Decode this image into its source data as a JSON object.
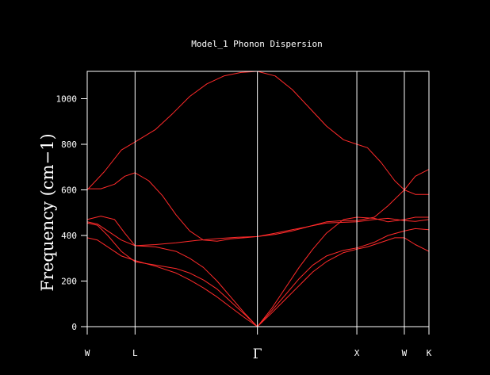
{
  "chart_data": {
    "type": "line",
    "title": "Model_1 Phonon Dispersion",
    "xlabel": "",
    "ylabel": "Frequency (cm−1)",
    "ylim": [
      0,
      1120
    ],
    "yticks": [
      0,
      200,
      400,
      600,
      800,
      1000
    ],
    "grid": false,
    "legend": "none",
    "colors": {
      "background": "#000000",
      "axes": "#ffffff",
      "series": "#ff2a2a"
    },
    "symmetry_points": [
      {
        "label": "W",
        "k": 0
      },
      {
        "label": "L",
        "k": 0.14
      },
      {
        "label": "Γ",
        "k": 0.498
      },
      {
        "label": "X",
        "k": 0.789
      },
      {
        "label": "W",
        "k": 0.928
      },
      {
        "label": "K",
        "k": 1.0
      }
    ],
    "series": [
      {
        "x": [
          0,
          0.05,
          0.1,
          0.14,
          0.2,
          0.25,
          0.3,
          0.35,
          0.4,
          0.45,
          0.498,
          0.55,
          0.6,
          0.65,
          0.7,
          0.75,
          0.789,
          0.82,
          0.86,
          0.9,
          0.928,
          0.96,
          1.0
        ],
        "y": [
          600,
          680,
          775,
          810,
          865,
          935,
          1010,
          1065,
          1100,
          1115,
          1120,
          1100,
          1040,
          960,
          880,
          820,
          800,
          785,
          720,
          640,
          600,
          580,
          580
        ]
      },
      {
        "x": [
          0,
          0.04,
          0.08,
          0.11,
          0.14,
          0.18,
          0.22,
          0.26,
          0.3,
          0.34,
          0.38,
          0.42,
          0.46,
          0.498,
          0.55,
          0.6,
          0.65,
          0.7,
          0.75,
          0.789,
          0.84,
          0.88,
          0.928,
          0.96,
          1.0
        ],
        "y": [
          605,
          605,
          625,
          660,
          675,
          640,
          575,
          490,
          420,
          380,
          375,
          385,
          390,
          395,
          405,
          420,
          440,
          460,
          465,
          465,
          480,
          530,
          600,
          660,
          690
        ]
      },
      {
        "x": [
          0,
          0.04,
          0.08,
          0.11,
          0.14,
          0.2,
          0.26,
          0.32,
          0.38,
          0.44,
          0.498,
          0.55,
          0.6,
          0.65,
          0.7,
          0.789,
          0.84,
          0.88,
          0.928,
          0.96,
          1.0
        ],
        "y": [
          470,
          485,
          470,
          410,
          355,
          360,
          368,
          378,
          386,
          392,
          395,
          410,
          425,
          440,
          455,
          460,
          470,
          475,
          465,
          462,
          470
        ]
      },
      {
        "x": [
          0,
          0.03,
          0.06,
          0.1,
          0.14,
          0.2,
          0.26,
          0.3,
          0.34,
          0.38,
          0.42,
          0.46,
          0.498,
          0.54,
          0.58,
          0.62,
          0.66,
          0.7,
          0.75,
          0.789,
          0.84,
          0.88,
          0.928,
          0.96,
          1.0
        ],
        "y": [
          460,
          450,
          420,
          380,
          355,
          350,
          330,
          300,
          260,
          200,
          130,
          60,
          0,
          80,
          170,
          260,
          340,
          410,
          470,
          480,
          475,
          460,
          470,
          480,
          480
        ]
      },
      {
        "x": [
          0,
          0.03,
          0.06,
          0.1,
          0.14,
          0.2,
          0.26,
          0.3,
          0.34,
          0.38,
          0.42,
          0.46,
          0.498,
          0.54,
          0.58,
          0.62,
          0.66,
          0.7,
          0.75,
          0.789,
          0.84,
          0.88,
          0.928,
          0.96,
          1.0
        ],
        "y": [
          455,
          445,
          400,
          330,
          285,
          270,
          255,
          235,
          205,
          165,
          110,
          55,
          0,
          70,
          140,
          210,
          270,
          310,
          335,
          345,
          370,
          400,
          420,
          430,
          425
        ]
      },
      {
        "x": [
          0,
          0.03,
          0.06,
          0.1,
          0.14,
          0.2,
          0.26,
          0.3,
          0.34,
          0.38,
          0.42,
          0.46,
          0.498,
          0.54,
          0.58,
          0.62,
          0.66,
          0.7,
          0.75,
          0.789,
          0.82,
          0.86,
          0.9,
          0.928,
          0.96,
          1.0
        ],
        "y": [
          390,
          380,
          350,
          310,
          290,
          265,
          235,
          205,
          170,
          130,
          85,
          40,
          0,
          60,
          120,
          180,
          240,
          285,
          325,
          340,
          350,
          370,
          390,
          390,
          360,
          330
        ]
      }
    ]
  }
}
